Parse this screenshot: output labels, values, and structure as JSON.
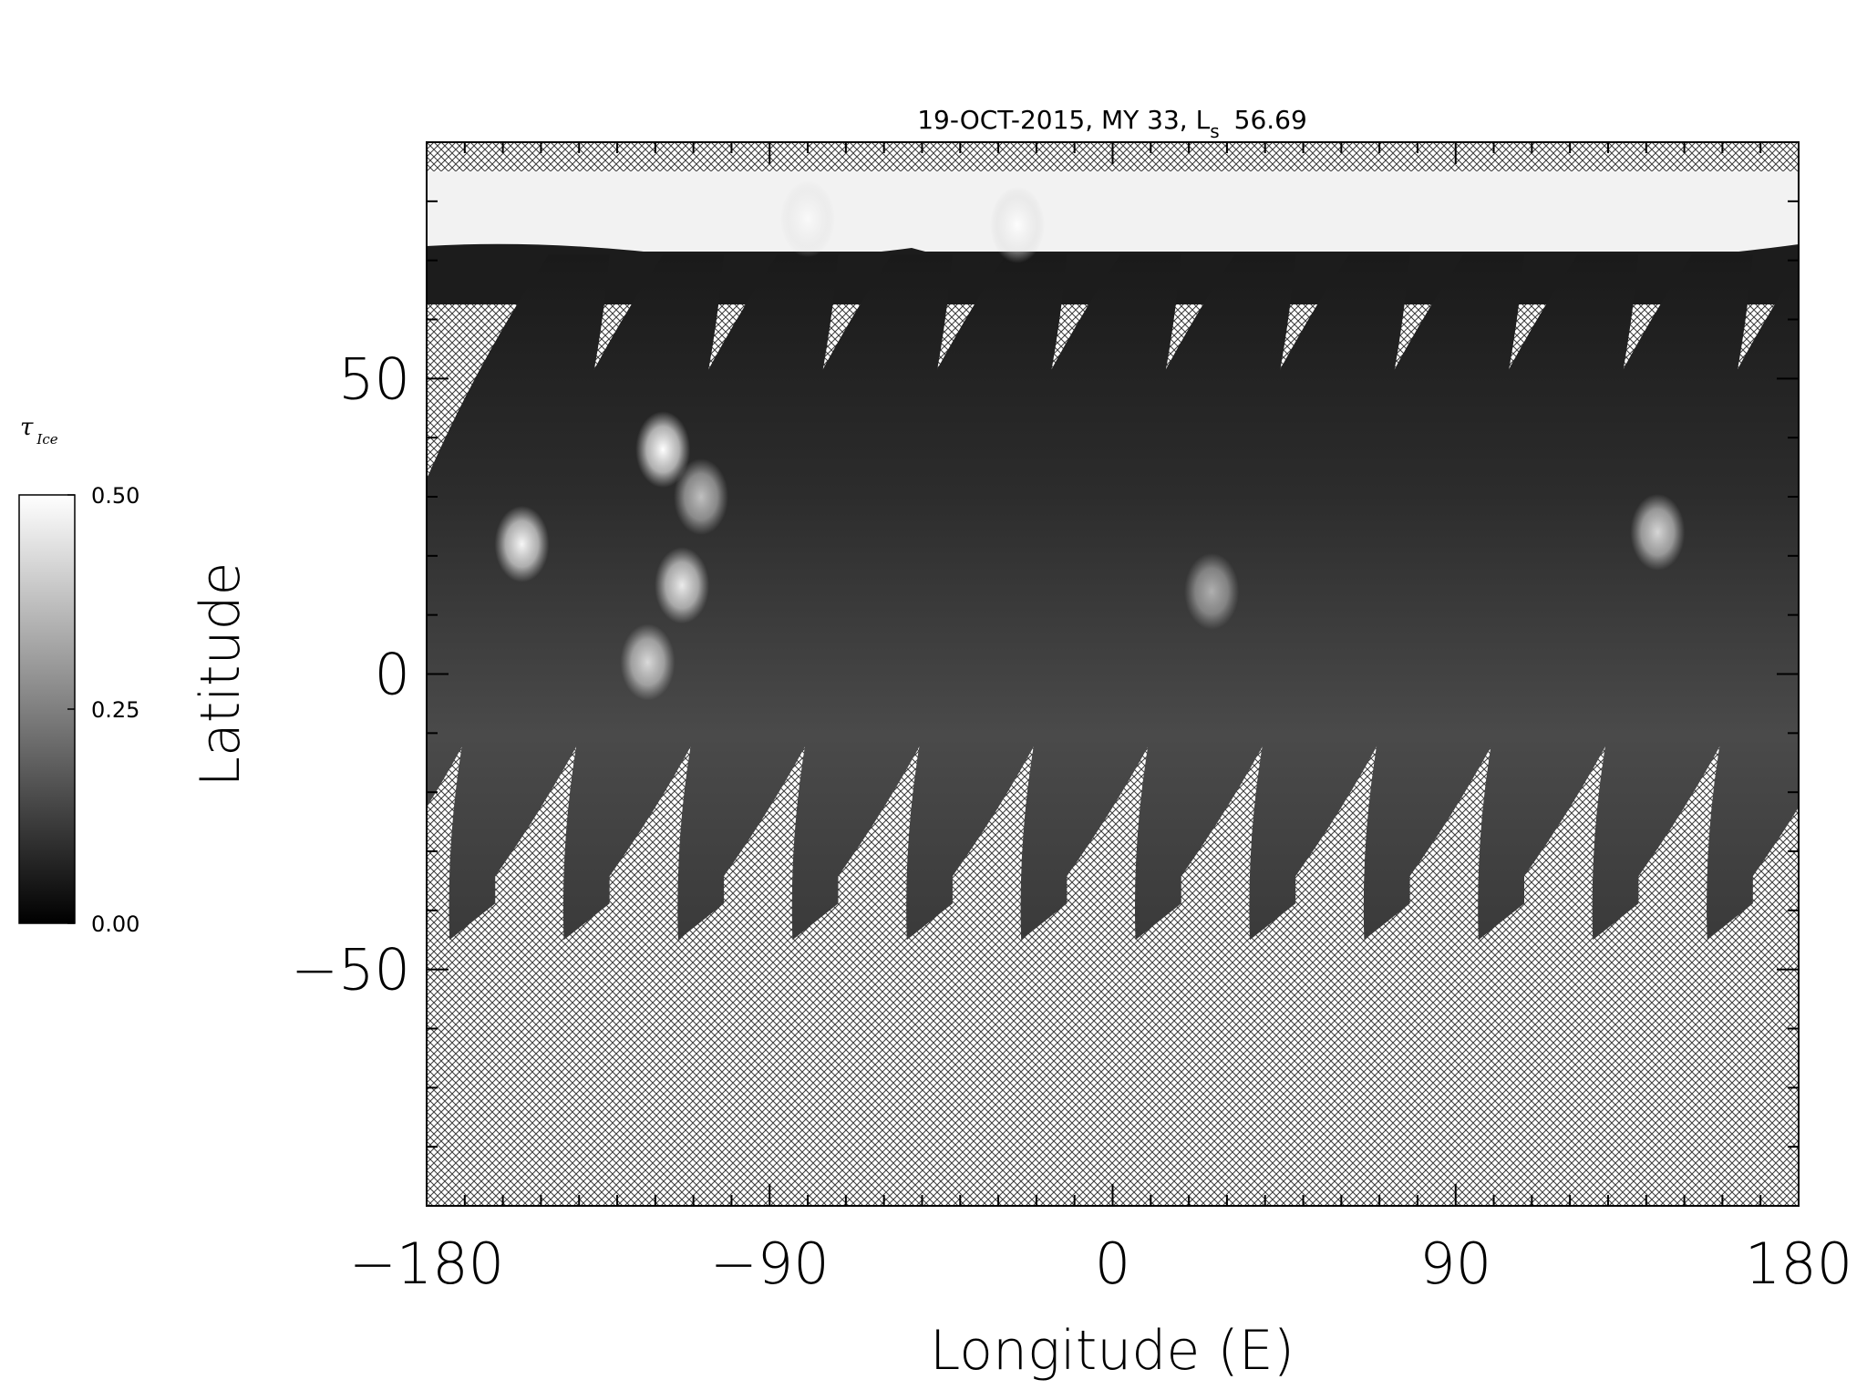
{
  "chart_data": {
    "type": "heatmap",
    "title_main": "19-OCT-2015, MY 33,  L",
    "title_sub": "s",
    "title_value": "56.69",
    "xlabel": "Longitude (E)",
    "ylabel": "Latitude",
    "xlim": [
      -180,
      180
    ],
    "ylim": [
      -90,
      90
    ],
    "xticks": [
      -180,
      -90,
      0,
      90,
      180
    ],
    "xtick_labels": [
      "−180",
      "−90",
      "0",
      "90",
      "180"
    ],
    "yticks": [
      -50,
      0,
      50
    ],
    "ytick_labels": [
      "−50",
      "0",
      "50"
    ],
    "colorbar": {
      "symbol": "τ",
      "symbol_sub": "Ice",
      "min": 0.0,
      "max": 0.5,
      "ticks": [
        0.0,
        0.25,
        0.5
      ],
      "tick_labels": [
        "0.00",
        "0.25",
        "0.50"
      ],
      "colormap": "grayscale"
    },
    "no_data_pattern": "crosshatch",
    "polar_cap_bright_lat": [
      76,
      85
    ],
    "swaths": {
      "count": 13,
      "north_lat": 71,
      "south_end_lat": -45,
      "lon_spacing_deg": 30,
      "first_south_end_lon": -168,
      "tilt_deg": 17
    },
    "bright_clouds": [
      {
        "lon": -155,
        "lat": 22,
        "level": 0.48
      },
      {
        "lon": -118,
        "lat": 38,
        "level": 0.5
      },
      {
        "lon": -113,
        "lat": 15,
        "level": 0.45
      },
      {
        "lon": -122,
        "lat": 2,
        "level": 0.4
      },
      {
        "lon": -108,
        "lat": 30,
        "level": 0.35
      },
      {
        "lon": 143,
        "lat": 24,
        "level": 0.4
      },
      {
        "lon": 26,
        "lat": 14,
        "level": 0.3
      },
      {
        "lon": -80,
        "lat": 77,
        "level": 0.3
      },
      {
        "lon": -25,
        "lat": 76,
        "level": 0.42
      }
    ]
  }
}
